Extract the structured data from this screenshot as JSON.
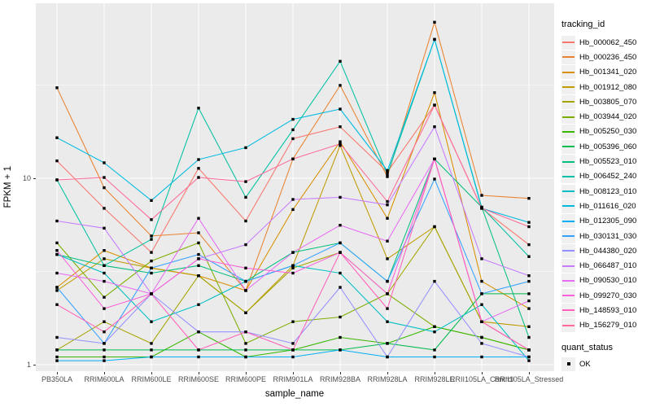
{
  "figure": {
    "background": "#FFFFFF",
    "panel_background": "#EBEBEB",
    "grid_color": "#FFFFFF",
    "axis_text_color": "#4D4D4D",
    "marker_color": "#000000"
  },
  "chart_data": {
    "type": "line",
    "title": "",
    "xlabel": "sample_name",
    "ylabel": "FPKM + 1",
    "y_scale": "log10",
    "ylim": [
      0.93,
      87
    ],
    "grid": true,
    "legend_position": "right",
    "y_ticks": [
      {
        "label": "10",
        "value": 10
      },
      {
        "label": "1",
        "value": 1
      }
    ],
    "y_minor_breaks": [
      3.1623,
      31.623
    ],
    "categories": [
      "PB350LA",
      "RRIM600LA",
      "RRIM600LE",
      "RRIM600SE",
      "RRIM600PE",
      "RRIM901LA",
      "RRIM928BA",
      "RRIM928LA",
      "RRIM928LE",
      "RRII105LA_Control",
      "RRII105LA_Stressed"
    ],
    "legend_title": "tracking_id",
    "quant_status": {
      "title": "quant_status",
      "items": [
        {
          "label": "OK",
          "marker": "filled-black-square"
        }
      ]
    },
    "series": [
      {
        "name": "Hb_000062_450",
        "color": "#F8766D",
        "values": [
          12.4,
          6.9,
          4.0,
          11.3,
          5.9,
          16.3,
          18.9,
          10.8,
          24.7,
          6.9,
          4.4
        ]
      },
      {
        "name": "Hb_000236_450",
        "color": "#EA8331",
        "values": [
          30.6,
          8.9,
          4.9,
          5.1,
          2.5,
          12.7,
          31.5,
          10.2,
          68.7,
          8.1,
          7.8
        ]
      },
      {
        "name": "Hb_001341_020",
        "color": "#D89000",
        "values": [
          2.6,
          4.1,
          3.3,
          3.0,
          2.5,
          6.8,
          15.7,
          6.1,
          28.8,
          2.8,
          2.0
        ]
      },
      {
        "name": "Hb_001912_080",
        "color": "#C09B00",
        "values": [
          2.5,
          3.7,
          3.3,
          3.0,
          1.9,
          3.4,
          15.0,
          3.7,
          5.5,
          1.7,
          1.6
        ]
      },
      {
        "name": "Hb_003805_070",
        "color": "#A3A500",
        "values": [
          1.2,
          1.7,
          1.3,
          3.0,
          1.9,
          3.3,
          4.0,
          2.4,
          5.5,
          1.7,
          1.2
        ]
      },
      {
        "name": "Hb_003944_020",
        "color": "#7CAE00",
        "values": [
          4.5,
          2.3,
          3.6,
          4.5,
          1.3,
          1.7,
          1.8,
          2.4,
          1.6,
          1.4,
          1.2
        ]
      },
      {
        "name": "Hb_005250_030",
        "color": "#39B600",
        "values": [
          1.1,
          1.1,
          1.1,
          1.5,
          1.1,
          1.2,
          1.4,
          1.3,
          1.6,
          1.4,
          1.2
        ]
      },
      {
        "name": "Hb_005396_060",
        "color": "#00BB4E",
        "values": [
          1.2,
          1.2,
          1.2,
          1.2,
          1.2,
          1.2,
          1.2,
          1.3,
          1.2,
          2.4,
          2.4
        ]
      },
      {
        "name": "Hb_005523_010",
        "color": "#00BF7D",
        "values": [
          3.9,
          3.4,
          3.1,
          3.4,
          2.8,
          4.0,
          4.5,
          2.8,
          12.7,
          7.0,
          1.4
        ]
      },
      {
        "name": "Hb_006452_240",
        "color": "#00C1A3",
        "values": [
          9.8,
          3.4,
          4.7,
          23.8,
          7.9,
          18.2,
          42.4,
          10.5,
          55.6,
          7.0,
          3.8
        ]
      },
      {
        "name": "Hb_008123_010",
        "color": "#00BFC4",
        "values": [
          3.9,
          3.1,
          1.7,
          2.1,
          2.8,
          3.4,
          3.1,
          1.7,
          1.5,
          2.1,
          1.05
        ]
      },
      {
        "name": "Hb_011616_020",
        "color": "#00BAE0",
        "values": [
          16.5,
          12.1,
          7.6,
          12.6,
          14.6,
          20.7,
          23.5,
          11.0,
          55.6,
          6.9,
          5.8
        ]
      },
      {
        "name": "Hb_012305_090",
        "color": "#00B0F6",
        "values": [
          1.05,
          1.05,
          1.1,
          1.1,
          1.1,
          1.1,
          1.2,
          1.1,
          1.1,
          1.1,
          1.1
        ]
      },
      {
        "name": "Hb_030131_030",
        "color": "#35A2FF",
        "values": [
          2.6,
          1.3,
          3.3,
          3.9,
          2.8,
          3.4,
          4.5,
          2.8,
          9.9,
          2.4,
          2.8
        ]
      },
      {
        "name": "Hb_044380_020",
        "color": "#9590FF",
        "values": [
          1.4,
          1.3,
          2.4,
          1.5,
          1.5,
          1.3,
          2.6,
          1.1,
          2.8,
          1.3,
          1.1
        ]
      },
      {
        "name": "Hb_066487_010",
        "color": "#C77CFF",
        "values": [
          5.9,
          5.4,
          2.4,
          3.7,
          4.4,
          7.7,
          7.9,
          7.2,
          18.9,
          3.7,
          3.0
        ]
      },
      {
        "name": "Hb_090530_010",
        "color": "#E76BF3",
        "values": [
          3.1,
          2.8,
          2.4,
          6.1,
          2.5,
          4.0,
          5.6,
          4.6,
          12.7,
          1.7,
          2.2
        ]
      },
      {
        "name": "Hb_099270_030",
        "color": "#FA62DB",
        "values": [
          4.1,
          2.0,
          2.4,
          3.7,
          3.3,
          3.1,
          4.0,
          2.4,
          12.7,
          1.7,
          1.2
        ]
      },
      {
        "name": "Hb_148593_010",
        "color": "#FF62BC",
        "values": [
          2.1,
          1.5,
          2.4,
          1.2,
          1.5,
          1.2,
          4.0,
          2.0,
          12.7,
          1.7,
          1.2
        ]
      },
      {
        "name": "Hb_156279_010",
        "color": "#FF6A98",
        "values": [
          9.8,
          10.1,
          6.0,
          10.1,
          9.6,
          12.7,
          15.3,
          7.5,
          24.7,
          6.9,
          5.5
        ]
      }
    ]
  }
}
